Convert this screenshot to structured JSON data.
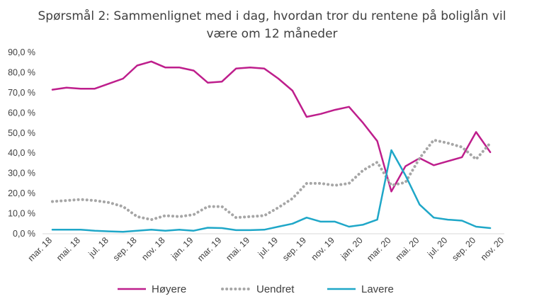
{
  "chart_data": {
    "type": "line",
    "title_lines": [
      "Spørsmål 2: Sammenlignet  med i dag, hvordan tror du rentene på boliglån vil",
      "være om 12 måneder"
    ],
    "ylim": [
      0,
      90
    ],
    "y_ticks": [
      "0,0 %",
      "10,0 %",
      "20,0 %",
      "30,0 %",
      "40,0 %",
      "50,0 %",
      "60,0 %",
      "70,0 %",
      "80,0 %",
      "90,0 %"
    ],
    "x_range": [
      0,
      32
    ],
    "x_tick_labels": [
      "mar. 18",
      "mai. 18",
      "jul. 18",
      "sep. 18",
      "nov. 18",
      "jan. 19",
      "mar. 19",
      "mai. 19",
      "jul. 19",
      "sep. 19",
      "nov. 19",
      "jan. 20",
      "mar. 20",
      "mai. 20",
      "jul. 20",
      "sep. 20",
      "nov. 20"
    ],
    "grid": false,
    "legend_position": "bottom",
    "series": [
      {
        "name": "Høyere",
        "color": "#BE1E8C",
        "style": "solid",
        "points": [
          [
            0,
            71.5
          ],
          [
            1,
            72.5
          ],
          [
            2,
            72
          ],
          [
            3,
            72
          ],
          [
            4,
            74.5
          ],
          [
            5,
            77
          ],
          [
            6,
            83.5
          ],
          [
            7,
            85.5
          ],
          [
            8,
            82.5
          ],
          [
            9,
            82.5
          ],
          [
            10,
            81
          ],
          [
            11,
            75
          ],
          [
            12,
            75.5
          ],
          [
            13,
            82
          ],
          [
            14,
            82.5
          ],
          [
            15,
            82
          ],
          [
            16,
            77
          ],
          [
            17,
            71
          ],
          [
            18,
            58
          ],
          [
            19,
            59.5
          ],
          [
            20,
            61.5
          ],
          [
            21,
            63
          ],
          [
            22,
            55
          ],
          [
            23,
            46
          ],
          [
            24,
            21
          ],
          [
            25,
            33.5
          ],
          [
            26,
            37.5
          ],
          [
            27,
            34
          ],
          [
            28,
            36
          ],
          [
            29,
            38
          ],
          [
            30,
            50.5
          ],
          [
            31,
            40.5
          ]
        ]
      },
      {
        "name": "Uendret",
        "color": "#A6A6A6",
        "style": "dotted",
        "points": [
          [
            0,
            16
          ],
          [
            1,
            16.5
          ],
          [
            2,
            17
          ],
          [
            3,
            16.5
          ],
          [
            4,
            15.5
          ],
          [
            5,
            13.5
          ],
          [
            6,
            8.5
          ],
          [
            7,
            7
          ],
          [
            8,
            9
          ],
          [
            9,
            8.5
          ],
          [
            10,
            9.5
          ],
          [
            11,
            13.5
          ],
          [
            12,
            13.5
          ],
          [
            13,
            8
          ],
          [
            14,
            8.5
          ],
          [
            15,
            9
          ],
          [
            16,
            13
          ],
          [
            17,
            17.5
          ],
          [
            18,
            25
          ],
          [
            19,
            25
          ],
          [
            20,
            24
          ],
          [
            21,
            25
          ],
          [
            22,
            31.5
          ],
          [
            23,
            35.5
          ],
          [
            24,
            24
          ],
          [
            25,
            25.5
          ],
          [
            26,
            37.5
          ],
          [
            27,
            46.5
          ],
          [
            28,
            45
          ],
          [
            29,
            43
          ],
          [
            30,
            37
          ],
          [
            31,
            45
          ]
        ]
      },
      {
        "name": "Lavere",
        "color": "#1FA7C8",
        "style": "solid",
        "points": [
          [
            0,
            2
          ],
          [
            1,
            2
          ],
          [
            2,
            2
          ],
          [
            3,
            1.5
          ],
          [
            4,
            1.2
          ],
          [
            5,
            1
          ],
          [
            6,
            1.5
          ],
          [
            7,
            2
          ],
          [
            8,
            1.5
          ],
          [
            9,
            2
          ],
          [
            10,
            1.5
          ],
          [
            11,
            3
          ],
          [
            12,
            2.8
          ],
          [
            13,
            1.8
          ],
          [
            14,
            1.8
          ],
          [
            15,
            2
          ],
          [
            16,
            3.5
          ],
          [
            17,
            5
          ],
          [
            18,
            8
          ],
          [
            19,
            6
          ],
          [
            20,
            6
          ],
          [
            21,
            3.5
          ],
          [
            22,
            4.5
          ],
          [
            23,
            7
          ],
          [
            24,
            41.5
          ],
          [
            25,
            29
          ],
          [
            26,
            14.5
          ],
          [
            27,
            8
          ],
          [
            28,
            7
          ],
          [
            29,
            6.5
          ],
          [
            30,
            3.5
          ],
          [
            31,
            2.8
          ]
        ]
      }
    ]
  }
}
